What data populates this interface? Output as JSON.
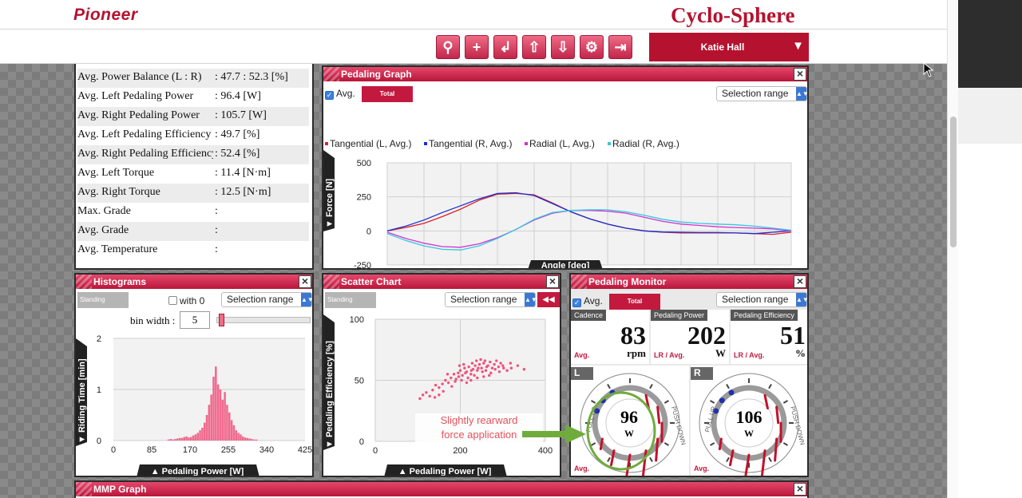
{
  "header": {
    "logo": "Pioneer",
    "app_title": "Cyclo-Sphere"
  },
  "toolbar": {
    "buttons": [
      {
        "name": "bike-icon",
        "glyph": "⚲"
      },
      {
        "name": "add-icon",
        "glyph": "+"
      },
      {
        "name": "import-icon",
        "glyph": "↲"
      },
      {
        "name": "upload-icon",
        "glyph": "⇧"
      },
      {
        "name": "download-icon",
        "glyph": "⇩"
      },
      {
        "name": "gear-icon",
        "glyph": "⚙"
      },
      {
        "name": "logout-icon",
        "glyph": "⇥"
      }
    ],
    "user": "Katie Hall",
    "user_caret": "▼"
  },
  "stats": [
    {
      "label": "Avg. Power Balance (L : R)",
      "value": ": 47.7  :   52.3 [%]"
    },
    {
      "label": "Avg. Left Pedaling Power",
      "value": ": 96.4 [W]"
    },
    {
      "label": "Avg. Right Pedaling Power",
      "value": ": 105.7 [W]"
    },
    {
      "label": "Avg. Left Pedaling Efficiency",
      "value": ": 49.7 [%]"
    },
    {
      "label": "Avg. Right Pedaling Efficiency",
      "value": ": 52.4 [%]"
    },
    {
      "label": "Avg. Left Torque",
      "value": ": 11.4 [N·m]"
    },
    {
      "label": "Avg. Right Torque",
      "value": ": 12.5 [N·m]"
    },
    {
      "label": "Max. Grade",
      "value": ":"
    },
    {
      "label": "Avg. Grade",
      "value": ":"
    },
    {
      "label": "Avg. Temperature",
      "value": ":"
    }
  ],
  "pedaling_graph": {
    "title": "Pedaling Graph",
    "avg_label": "Avg.",
    "badge": "Total",
    "select": "Selection range",
    "legend": [
      "Tangential (L, Avg.)",
      "Tangential (R, Avg.)",
      "Radial (L, Avg.)",
      "Radial (R, Avg.)"
    ],
    "legend_colors": [
      "#e0202a",
      "#1a2fd0",
      "#d033d0",
      "#33c8e0"
    ],
    "ylabel": "▼ Force [N]",
    "xlabel": "Angle [deg]",
    "close": "×"
  },
  "histograms": {
    "title": "Histograms",
    "badge": "Standing",
    "with0_label": "with 0",
    "select": "Selection range",
    "bin_label": "bin width :",
    "bin_value": "5",
    "bin_slider_fraction": 0.02,
    "ylabel": "▼ Riding Time [min]",
    "xlabel": "▲ Pedaling Power [W]",
    "close": "×"
  },
  "scatter": {
    "title": "Scatter Chart",
    "badge": "Standing",
    "select": "Selection range",
    "rewind": "◀◀",
    "ylabel": "▼ Pedaling Efficiency [%]",
    "xlabel": "▲ Pedaling Power [W]",
    "annotation_line1": "Slightly rearward",
    "annotation_line2": "force application",
    "close": "×"
  },
  "monitor": {
    "title": "Pedaling Monitor",
    "avg_label": "Avg.",
    "badge": "Total",
    "select": "Selection range",
    "cells": [
      {
        "title": "Cadence",
        "value": "83",
        "unit": "rpm",
        "sub": "Avg."
      },
      {
        "title": "Pedaling Power",
        "value": "202",
        "unit": "W",
        "sub": "LR / Avg."
      },
      {
        "title": "Pedaling Efficiency",
        "value": "51",
        "unit": "%",
        "sub": "LR / Avg."
      }
    ],
    "left": {
      "side": "L",
      "value": "96",
      "unit": "W",
      "sub": "Avg.",
      "pull": "PULL UP",
      "push": "PUSH DOWN"
    },
    "right": {
      "side": "R",
      "value": "106",
      "unit": "W",
      "sub": "Avg.",
      "pull": "PULL UP",
      "push": "PUSH DOWN"
    },
    "close": "×"
  },
  "mmp": {
    "title": "MMP Graph",
    "close": "×"
  },
  "chart_data": [
    {
      "type": "line",
      "xlim": [
        0,
        330
      ],
      "ylim": [
        -250,
        500
      ],
      "xticks": [
        0,
        30,
        60,
        90,
        120,
        150,
        180,
        210,
        240,
        270,
        300,
        330
      ],
      "yticks": [
        500,
        250,
        0,
        -250
      ],
      "grid": true,
      "legend_position": "top",
      "x": [
        0,
        15,
        30,
        45,
        60,
        75,
        90,
        105,
        120,
        135,
        150,
        165,
        180,
        195,
        210,
        225,
        240,
        255,
        270,
        285,
        300,
        315,
        330
      ],
      "series": [
        {
          "name": "Tangential (L, Avg.)",
          "color": "#e0202a",
          "values": [
            0,
            25,
            55,
            105,
            160,
            225,
            270,
            275,
            265,
            205,
            140,
            90,
            50,
            20,
            0,
            -10,
            -15,
            -15,
            -15,
            -15,
            -20,
            -25,
            -10
          ]
        },
        {
          "name": "Tangential (R, Avg.)",
          "color": "#1a2fd0",
          "values": [
            0,
            35,
            80,
            135,
            185,
            235,
            275,
            280,
            260,
            200,
            140,
            90,
            50,
            20,
            0,
            -8,
            -10,
            -12,
            -12,
            -15,
            -20,
            -10,
            0
          ]
        },
        {
          "name": "Radial (L, Avg.)",
          "color": "#d033d0",
          "values": [
            -10,
            -55,
            -90,
            -115,
            -120,
            -95,
            -50,
            10,
            80,
            130,
            150,
            150,
            145,
            130,
            100,
            70,
            50,
            40,
            30,
            25,
            20,
            15,
            0
          ]
        },
        {
          "name": "Radial (R, Avg.)",
          "color": "#33c8e0",
          "values": [
            -20,
            -70,
            -110,
            -135,
            -140,
            -110,
            -55,
            10,
            85,
            135,
            150,
            155,
            155,
            140,
            115,
            85,
            65,
            55,
            50,
            45,
            35,
            20,
            5
          ]
        }
      ]
    },
    {
      "type": "bar",
      "xlim": [
        0,
        425
      ],
      "ylim": [
        0,
        2
      ],
      "xticks": [
        0,
        85,
        170,
        255,
        340,
        425
      ],
      "yticks": [
        2,
        1,
        0
      ],
      "grid": true,
      "bin_width": 5,
      "bin_start": 120,
      "color": "#f06a8e",
      "values": [
        0.02,
        0.03,
        0.02,
        0.03,
        0.04,
        0.05,
        0.05,
        0.07,
        0.08,
        0.06,
        0.07,
        0.1,
        0.12,
        0.15,
        0.2,
        0.25,
        0.35,
        0.5,
        0.7,
        0.9,
        1.25,
        1.45,
        1.1,
        1.0,
        0.8,
        0.95,
        0.7,
        0.55,
        0.4,
        0.3,
        0.2,
        0.15,
        0.12,
        0.08,
        0.06,
        0.05,
        0.04,
        0.03,
        0.02,
        0.02
      ]
    },
    {
      "type": "scatter",
      "xlim": [
        0,
        400
      ],
      "ylim": [
        0,
        100
      ],
      "xticks": [
        0,
        200,
        400
      ],
      "yticks": [
        100,
        50,
        0
      ],
      "grid": true,
      "color": "#f0527a",
      "points": [
        [
          105,
          35
        ],
        [
          112,
          38
        ],
        [
          120,
          40
        ],
        [
          128,
          37
        ],
        [
          135,
          42
        ],
        [
          142,
          46
        ],
        [
          150,
          44
        ],
        [
          158,
          47
        ],
        [
          165,
          50
        ],
        [
          172,
          48
        ],
        [
          178,
          52
        ],
        [
          185,
          55
        ],
        [
          190,
          51
        ],
        [
          195,
          56
        ],
        [
          200,
          58
        ],
        [
          205,
          54
        ],
        [
          210,
          60
        ],
        [
          215,
          57
        ],
        [
          220,
          61
        ],
        [
          225,
          55
        ],
        [
          230,
          59
        ],
        [
          235,
          62
        ],
        [
          240,
          58
        ],
        [
          245,
          63
        ],
        [
          250,
          60
        ],
        [
          255,
          64
        ],
        [
          260,
          58
        ],
        [
          265,
          62
        ],
        [
          270,
          65
        ],
        [
          275,
          60
        ],
        [
          280,
          63
        ],
        [
          285,
          66
        ],
        [
          290,
          61
        ],
        [
          295,
          64
        ],
        [
          300,
          62
        ],
        [
          310,
          58
        ],
        [
          320,
          60
        ],
        [
          335,
          62
        ],
        [
          350,
          59
        ],
        [
          180,
          45
        ],
        [
          188,
          49
        ],
        [
          196,
          53
        ],
        [
          203,
          50
        ],
        [
          212,
          56
        ],
        [
          218,
          52
        ],
        [
          226,
          58
        ],
        [
          233,
          54
        ],
        [
          242,
          60
        ],
        [
          252,
          57
        ],
        [
          262,
          61
        ],
        [
          272,
          56
        ],
        [
          282,
          59
        ],
        [
          292,
          57
        ],
        [
          302,
          60
        ],
        [
          318,
          64
        ],
        [
          228,
          64
        ],
        [
          238,
          66
        ],
        [
          248,
          67
        ],
        [
          258,
          66
        ],
        [
          198,
          62
        ],
        [
          208,
          63
        ],
        [
          170,
          55
        ],
        [
          160,
          41
        ],
        [
          150,
          38
        ],
        [
          140,
          36
        ],
        [
          215,
          48
        ],
        [
          225,
          50
        ],
        [
          240,
          52
        ],
        [
          255,
          53
        ],
        [
          268,
          54
        ]
      ]
    }
  ]
}
